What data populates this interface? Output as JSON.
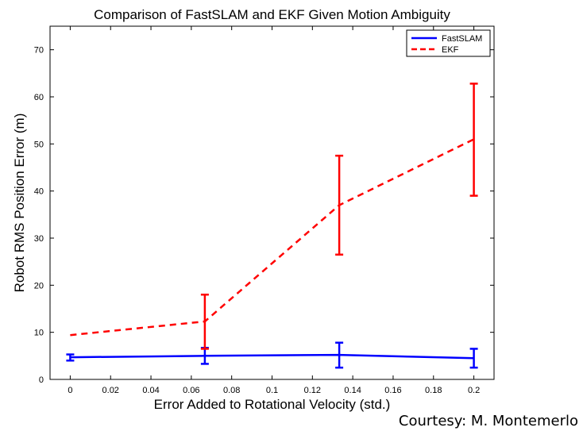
{
  "chart_data": {
    "type": "line",
    "title": "Comparison of FastSLAM and EKF Given Motion Ambiguity",
    "xlabel": "Error Added to Rotational Velocity (std.)",
    "ylabel": "Robot RMS Position Error (m)",
    "xlim": [
      -0.01,
      0.21
    ],
    "ylim": [
      0,
      75
    ],
    "xticks": [
      0,
      0.02,
      0.04,
      0.06,
      0.08,
      0.1,
      0.12,
      0.14,
      0.16,
      0.18,
      0.2
    ],
    "xtick_labels": [
      "0",
      "0.02",
      "0.04",
      "0.06",
      "0.08",
      "0.1",
      "0.12",
      "0.14",
      "0.16",
      "0.18",
      "0.2"
    ],
    "yticks": [
      0,
      10,
      20,
      30,
      40,
      50,
      60,
      70
    ],
    "ytick_labels": [
      "0",
      "10",
      "20",
      "30",
      "40",
      "50",
      "60",
      "70"
    ],
    "grid": false,
    "legend": "top-right",
    "x": [
      0,
      0.0667,
      0.1333,
      0.2
    ],
    "series": [
      {
        "name": "FastSLAM",
        "color": "#0000ff",
        "style": "solid",
        "values": [
          4.7,
          5.0,
          5.2,
          4.5
        ],
        "error_low": [
          4.0,
          3.3,
          2.5,
          2.5
        ],
        "error_high": [
          5.3,
          6.7,
          7.8,
          6.5
        ],
        "error_bars_at": [
          0,
          1,
          2,
          3
        ]
      },
      {
        "name": "EKF",
        "color": "#ff0000",
        "style": "dashed",
        "values": [
          9.4,
          12.3,
          37.0,
          51.0
        ],
        "error_low": [
          null,
          6.5,
          26.5,
          39.0
        ],
        "error_high": [
          null,
          18.0,
          47.5,
          62.8
        ],
        "error_bars_at": [
          1,
          2,
          3
        ]
      }
    ]
  },
  "courtesy": "Courtesy: M. Montemerlo"
}
